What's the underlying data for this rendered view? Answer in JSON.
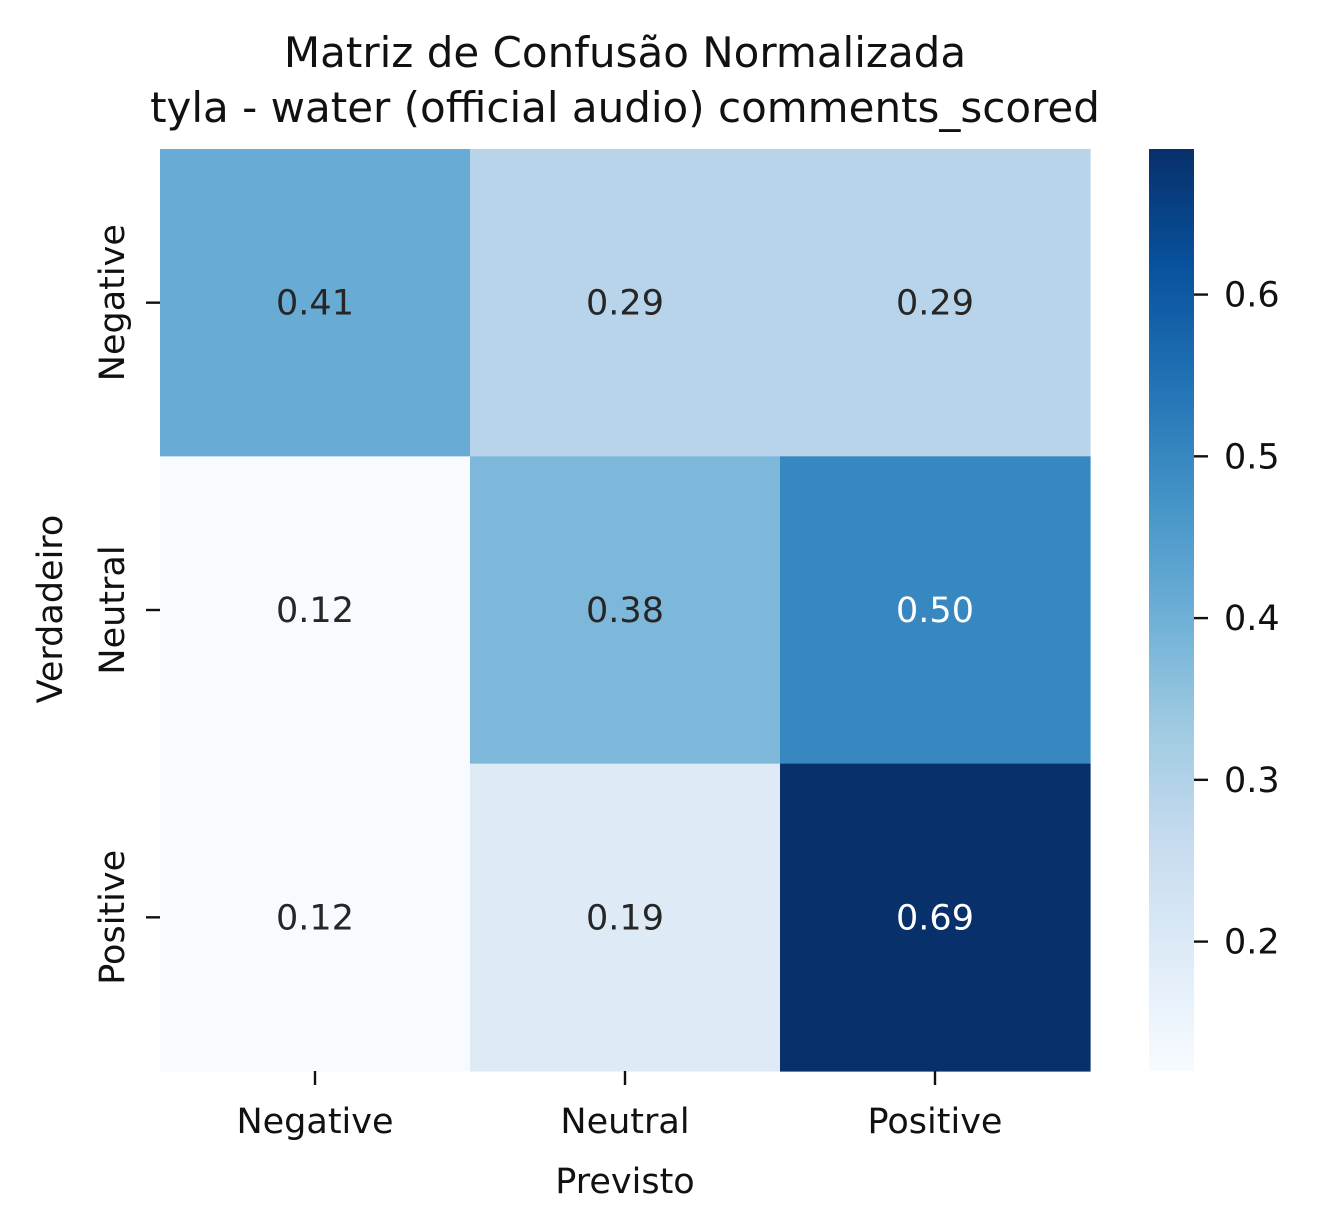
{
  "chart_data": {
    "type": "heatmap",
    "title": "Matriz de Confusão Normalizada",
    "subtitle": "tyla - water (official audio) comments_scored",
    "xlabel": "Previsto",
    "ylabel": "Verdadeiro",
    "x_categories": [
      "Negative",
      "Neutral",
      "Positive"
    ],
    "y_categories": [
      "Negative",
      "Neutral",
      "Positive"
    ],
    "values": [
      [
        0.41,
        0.29,
        0.29
      ],
      [
        0.12,
        0.38,
        0.5
      ],
      [
        0.12,
        0.19,
        0.69
      ]
    ],
    "cell_labels": [
      [
        "0.41",
        "0.29",
        "0.29"
      ],
      [
        "0.12",
        "0.38",
        "0.50"
      ],
      [
        "0.12",
        "0.19",
        "0.69"
      ]
    ],
    "colormap": "Blues",
    "colorbar": {
      "range": [
        0.12,
        0.69
      ],
      "ticks": [
        0.2,
        0.3,
        0.4,
        0.5,
        0.6
      ],
      "tick_labels": [
        "0.2",
        "0.3",
        "0.4",
        "0.5",
        "0.6"
      ]
    }
  }
}
